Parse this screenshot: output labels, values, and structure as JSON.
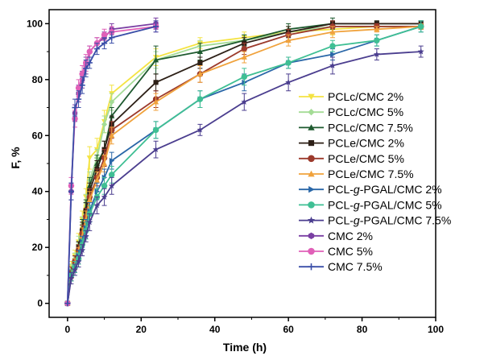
{
  "chart_data": {
    "type": "line",
    "xlabel": "Time (h)",
    "ylabel": "F, %",
    "xlim": [
      -5,
      100
    ],
    "ylim": [
      -5,
      105
    ],
    "xticks": [
      0,
      20,
      40,
      60,
      80,
      100
    ],
    "yticks": [
      0,
      20,
      40,
      60,
      80,
      100
    ],
    "grid": false,
    "legend_position": "right",
    "legend_labels": [
      {
        "prefix": "PCLc/CMC 2%",
        "italic": "",
        "suffix": ""
      },
      {
        "prefix": "PCLc/CMC 5%",
        "italic": "",
        "suffix": ""
      },
      {
        "prefix": "PCLc/CMC 7.5%",
        "italic": "",
        "suffix": ""
      },
      {
        "prefix": "PCLe/CMC 2%",
        "italic": "",
        "suffix": ""
      },
      {
        "prefix": "PCLe/CMC 5%",
        "italic": "",
        "suffix": ""
      },
      {
        "prefix": "PCLe/CMC 7.5%",
        "italic": "",
        "suffix": ""
      },
      {
        "prefix": "PCL-",
        "italic": "g",
        "suffix": "-PGAL/CMC 2%"
      },
      {
        "prefix": "PCL-",
        "italic": "g",
        "suffix": "-PGAL/CMC 5%"
      },
      {
        "prefix": "PCL-",
        "italic": "g",
        "suffix": "-PGAL/CMC 7.5%"
      },
      {
        "prefix": "CMC 2%",
        "italic": "",
        "suffix": ""
      },
      {
        "prefix": "CMC 5%",
        "italic": "",
        "suffix": ""
      },
      {
        "prefix": "CMC 7.5%",
        "italic": "",
        "suffix": ""
      }
    ],
    "series": [
      {
        "name": "PCLc/CMC 2%",
        "color": "#f4e342",
        "marker": "triangle-down",
        "x": [
          0,
          1,
          2,
          3,
          4,
          5,
          6,
          8,
          10,
          12,
          24,
          36,
          48,
          60,
          72,
          84,
          96
        ],
        "y": [
          0,
          13,
          17,
          22,
          30,
          38,
          52,
          55,
          65,
          75,
          88,
          93,
          95,
          97,
          98,
          99,
          99
        ],
        "err": [
          0,
          2,
          2,
          3,
          3,
          3,
          4,
          4,
          4,
          3,
          3,
          2,
          2,
          2,
          2,
          1,
          1
        ]
      },
      {
        "name": "PCLc/CMC 5%",
        "color": "#a4dc96",
        "marker": "diamond",
        "x": [
          0,
          1,
          2,
          3,
          4,
          5,
          6,
          8,
          10,
          12,
          24,
          36,
          48,
          60,
          72,
          84,
          96
        ],
        "y": [
          0,
          12,
          16,
          21,
          28,
          36,
          44,
          52,
          64,
          72,
          87,
          92,
          94,
          97,
          99,
          99,
          99
        ],
        "err": [
          0,
          2,
          2,
          3,
          3,
          3,
          3,
          3,
          3,
          3,
          3,
          2,
          2,
          2,
          2,
          1,
          1
        ]
      },
      {
        "name": "PCLc/CMC 7.5%",
        "color": "#1e5a2f",
        "marker": "triangle-up",
        "x": [
          0,
          1,
          2,
          3,
          4,
          5,
          6,
          8,
          10,
          12,
          24,
          36,
          48,
          60,
          72,
          84,
          96
        ],
        "y": [
          0,
          11,
          15,
          20,
          27,
          34,
          42,
          50,
          55,
          67,
          87,
          90,
          94,
          98,
          100,
          100,
          100
        ],
        "err": [
          0,
          2,
          2,
          2,
          3,
          3,
          3,
          3,
          3,
          3,
          5,
          3,
          2,
          2,
          2,
          1,
          1
        ]
      },
      {
        "name": "PCLe/CMC 2%",
        "color": "#2d2017",
        "marker": "square",
        "x": [
          0,
          1,
          2,
          3,
          4,
          5,
          6,
          8,
          10,
          12,
          24,
          36,
          48,
          60,
          72,
          84,
          96
        ],
        "y": [
          0,
          11,
          15,
          20,
          26,
          33,
          40,
          48,
          55,
          64,
          79,
          86,
          93,
          97,
          100,
          100,
          100
        ],
        "err": [
          0,
          2,
          2,
          2,
          3,
          3,
          3,
          3,
          3,
          3,
          3,
          2,
          2,
          2,
          1,
          1,
          1
        ]
      },
      {
        "name": "PCLe/CMC 5%",
        "color": "#9c3a2c",
        "marker": "circle",
        "x": [
          0,
          1,
          2,
          3,
          4,
          5,
          6,
          8,
          10,
          12,
          24,
          36,
          48,
          60,
          72,
          84,
          96
        ],
        "y": [
          0,
          11,
          15,
          19,
          25,
          31,
          38,
          45,
          52,
          62,
          73,
          82,
          91,
          96,
          99,
          99,
          99
        ],
        "err": [
          0,
          2,
          2,
          2,
          3,
          3,
          3,
          3,
          3,
          3,
          3,
          3,
          2,
          2,
          2,
          1,
          1
        ]
      },
      {
        "name": "PCLe/CMC 7.5%",
        "color": "#f0a23c",
        "marker": "triangle-up",
        "x": [
          0,
          1,
          2,
          3,
          4,
          5,
          6,
          8,
          10,
          12,
          24,
          36,
          48,
          60,
          72,
          84,
          96
        ],
        "y": [
          0,
          10,
          14,
          18,
          24,
          30,
          37,
          44,
          50,
          60,
          72,
          82,
          88,
          94,
          97,
          98,
          99
        ],
        "err": [
          0,
          2,
          2,
          2,
          3,
          3,
          3,
          3,
          3,
          3,
          3,
          3,
          2,
          2,
          2,
          1,
          1
        ]
      },
      {
        "name": "PCL-g-PGAL/CMC 2%",
        "color": "#2a67a8",
        "marker": "triangle-right",
        "x": [
          0,
          1,
          2,
          3,
          4,
          5,
          6,
          8,
          10,
          12,
          24,
          36,
          48,
          60,
          72,
          84,
          96
        ],
        "y": [
          0,
          10,
          13,
          17,
          22,
          27,
          33,
          40,
          45,
          51,
          62,
          73,
          79,
          86,
          89,
          94,
          99
        ],
        "err": [
          0,
          2,
          2,
          2,
          2,
          3,
          3,
          3,
          3,
          3,
          3,
          3,
          3,
          2,
          2,
          2,
          2
        ]
      },
      {
        "name": "PCL-g-PGAL/CMC 5%",
        "color": "#3fbf94",
        "marker": "circle",
        "x": [
          0,
          1,
          2,
          3,
          4,
          5,
          6,
          8,
          10,
          12,
          24,
          36,
          48,
          60,
          72,
          84,
          96
        ],
        "y": [
          0,
          10,
          13,
          16,
          21,
          26,
          32,
          38,
          42,
          46,
          62,
          73,
          81,
          86,
          92,
          94,
          99
        ],
        "err": [
          0,
          2,
          2,
          2,
          2,
          3,
          3,
          3,
          3,
          3,
          3,
          3,
          3,
          2,
          2,
          2,
          2
        ]
      },
      {
        "name": "PCL-g-PGAL/CMC 7.5%",
        "color": "#4b3e8f",
        "marker": "star",
        "x": [
          0,
          1,
          2,
          3,
          4,
          5,
          6,
          8,
          10,
          12,
          24,
          36,
          48,
          60,
          72,
          84,
          96
        ],
        "y": [
          0,
          9,
          12,
          15,
          19,
          24,
          29,
          35,
          38,
          42,
          55,
          62,
          72,
          79,
          85,
          89,
          90
        ],
        "err": [
          0,
          2,
          2,
          2,
          2,
          2,
          3,
          3,
          3,
          3,
          3,
          2,
          3,
          3,
          3,
          2,
          2
        ]
      },
      {
        "name": "CMC 2%",
        "color": "#7a3fa3",
        "marker": "hexagon",
        "x": [
          0,
          1,
          2,
          3,
          4,
          5,
          6,
          8,
          10,
          12,
          24
        ],
        "y": [
          0,
          40,
          68,
          75,
          80,
          85,
          90,
          93,
          95,
          98,
          100
        ],
        "err": [
          0,
          3,
          3,
          3,
          3,
          3,
          2,
          2,
          2,
          2,
          2
        ]
      },
      {
        "name": "CMC 5%",
        "color": "#e060b8",
        "marker": "circle",
        "x": [
          0,
          1,
          2,
          3,
          4,
          5,
          6,
          8,
          10,
          12,
          24
        ],
        "y": [
          0,
          42,
          66,
          77,
          82,
          86,
          90,
          93,
          96,
          97,
          99
        ],
        "err": [
          0,
          3,
          3,
          3,
          3,
          3,
          2,
          2,
          2,
          2,
          2
        ]
      },
      {
        "name": "CMC 7.5%",
        "color": "#3a4ea8",
        "marker": "plus",
        "x": [
          0,
          1,
          2,
          3,
          4,
          5,
          6,
          8,
          10,
          12,
          24
        ],
        "y": [
          0,
          40,
          70,
          73,
          78,
          84,
          86,
          91,
          93,
          95,
          99
        ],
        "err": [
          0,
          3,
          3,
          3,
          3,
          3,
          2,
          2,
          2,
          2,
          2
        ]
      }
    ]
  }
}
